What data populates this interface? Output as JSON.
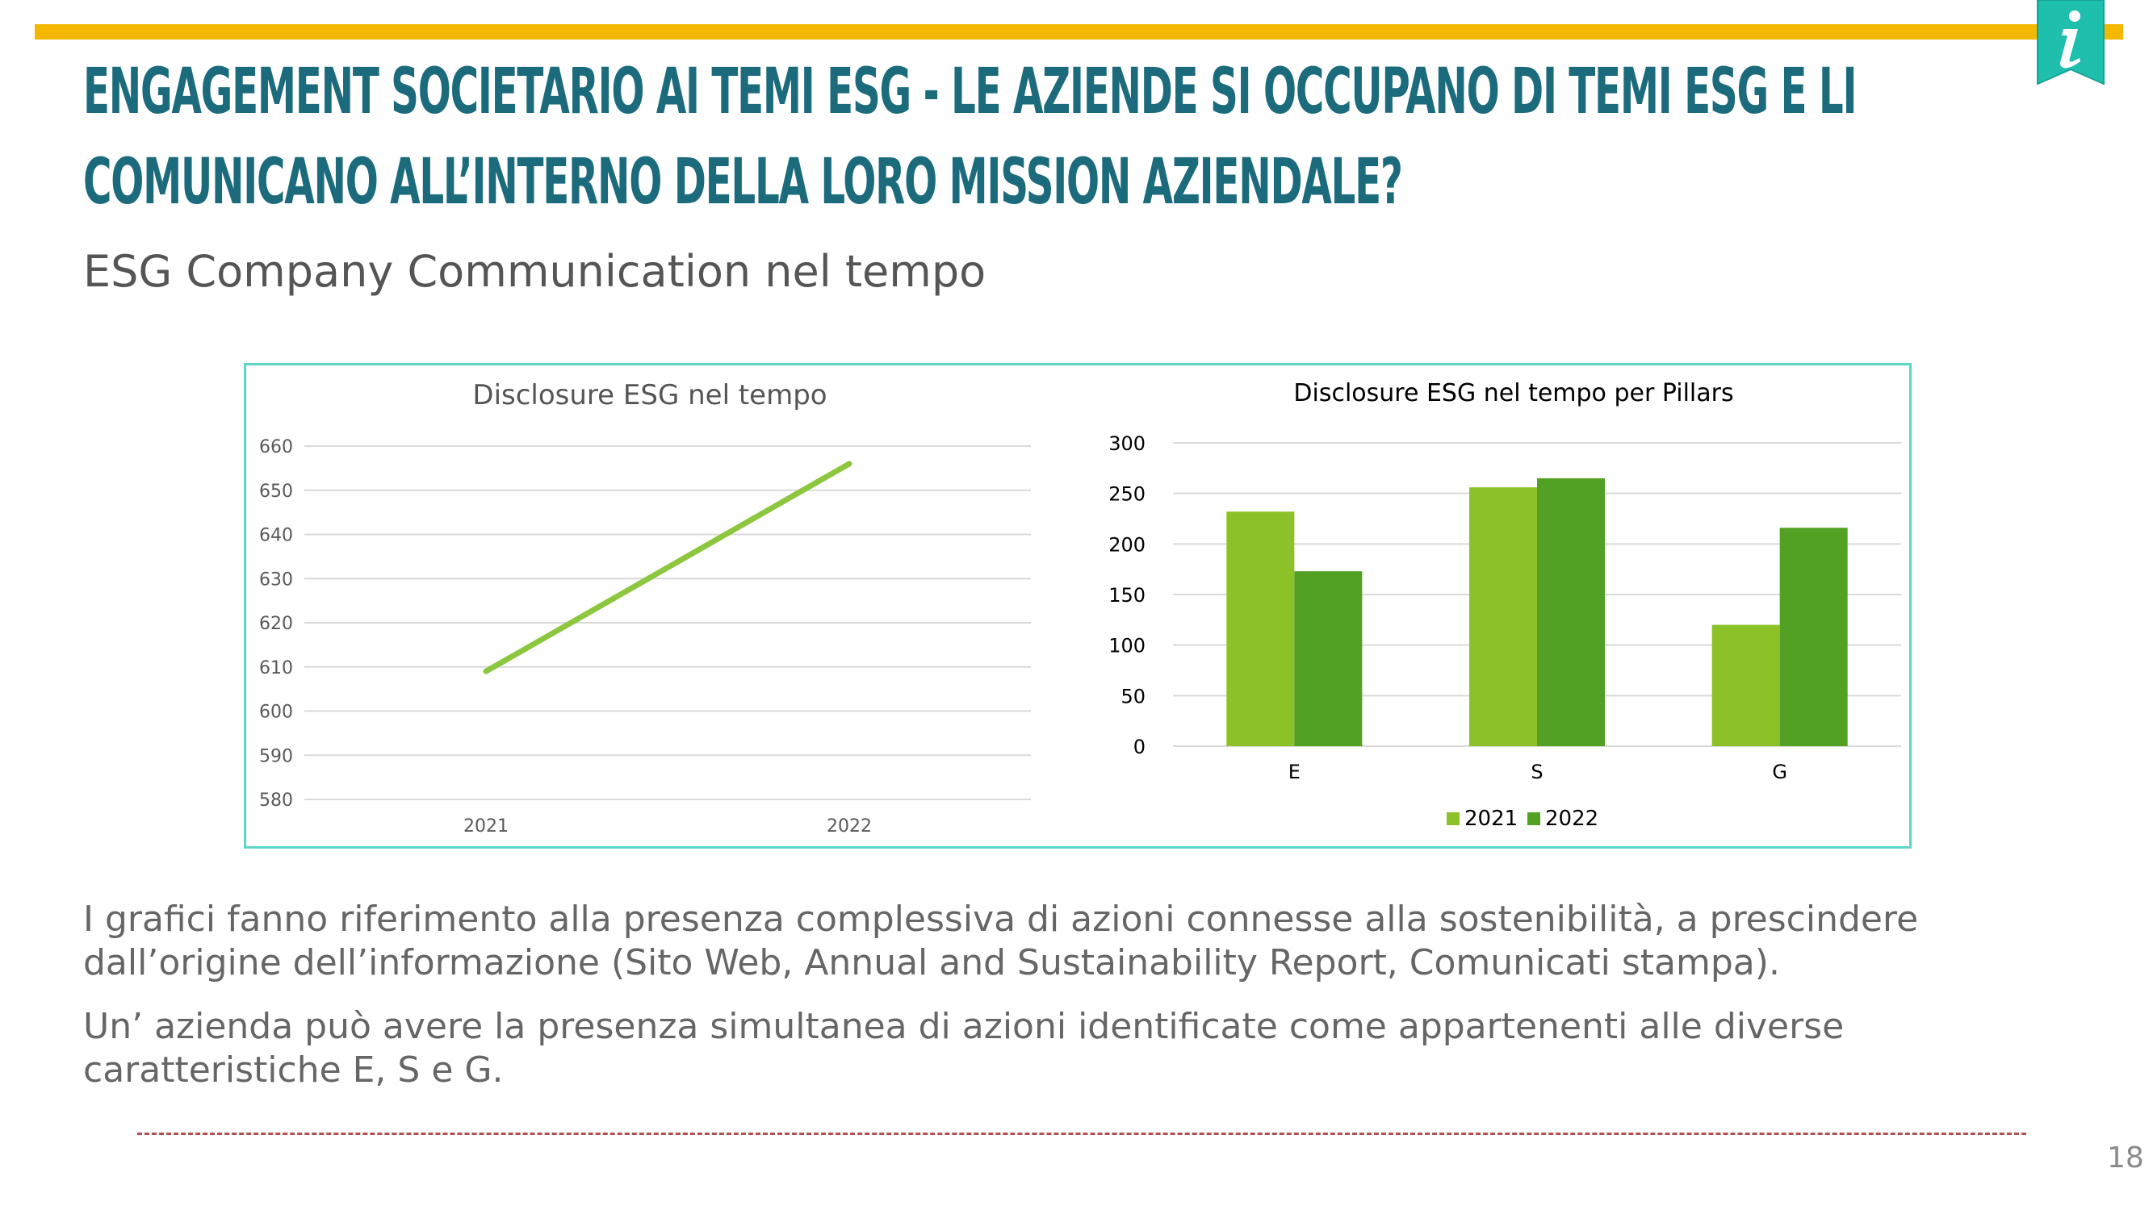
{
  "header": {
    "title": "ENGAGEMENT SOCIETARIO AI TEMI ESG - LE AZIENDE SI OCCUPANO DI TEMI ESG E LI COMUNICANO ALL’INTERNO DELLA LORO MISSION AZIENDALE?",
    "subtitle": "ESG Company Communication nel tempo",
    "info_icon": "info-icon",
    "accent_color": "#f5b800",
    "title_color": "#1c6b7d",
    "badge_color": "#1fbfae"
  },
  "chart_data": [
    {
      "type": "line",
      "title": "Disclosure ESG nel tempo",
      "categories": [
        "2021",
        "2022"
      ],
      "series": [
        {
          "values": [
            609,
            656
          ],
          "color": "#8dc63f"
        }
      ],
      "ylim": [
        580,
        660
      ],
      "yticks": [
        "660",
        "650",
        "640",
        "630",
        "620",
        "610",
        "600",
        "590",
        "580"
      ],
      "grid": true
    },
    {
      "type": "bar",
      "title": "Disclosure ESG nel tempo per Pillars",
      "categories": [
        "E",
        "S",
        "G"
      ],
      "series": [
        {
          "name": "2021",
          "values": [
            232,
            256,
            120
          ],
          "color": "#8cc227"
        },
        {
          "name": "2022",
          "values": [
            173,
            265,
            216
          ],
          "color": "#53a124"
        }
      ],
      "ylim": [
        0,
        300
      ],
      "yticks": [
        "300",
        "250",
        "200",
        "150",
        "100",
        "50",
        "0"
      ],
      "grid": true,
      "legend": "bottom"
    }
  ],
  "body": {
    "paragraph1": "I grafici fanno riferimento alla presenza complessiva di azioni connesse alla sostenibilità, a prescindere dall’origine dell’informazione (Sito Web, Annual and Sustainability Report, Comunicati stampa).",
    "paragraph2": "Un’ azienda può avere la presenza simultanea di azioni identificate come appartenenti alle diverse caratteristiche E, S e G."
  },
  "footer": {
    "page_number": "18"
  }
}
